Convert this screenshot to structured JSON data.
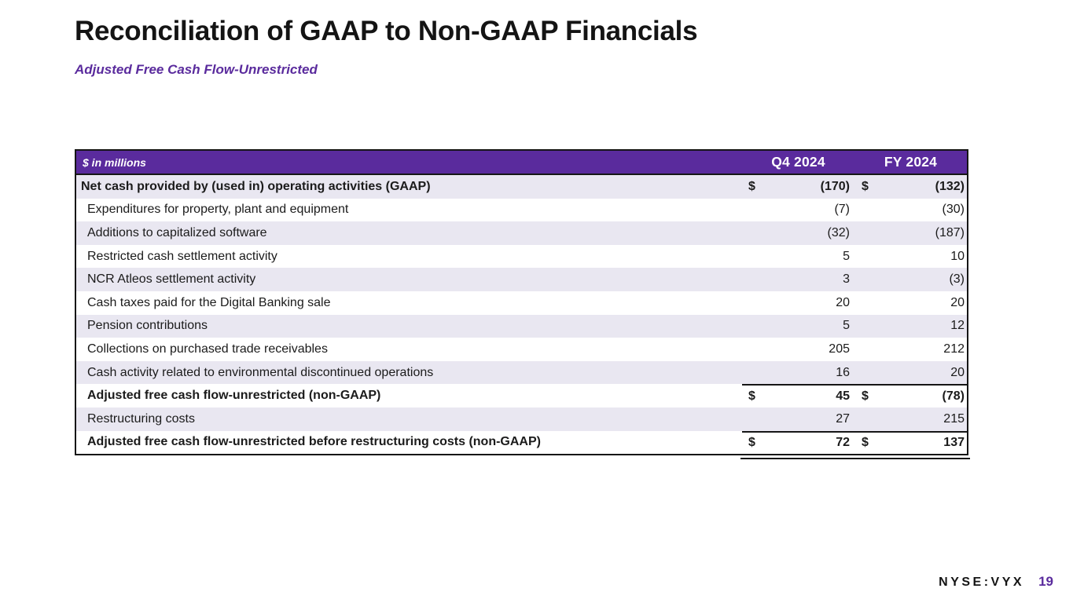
{
  "slide": {
    "title": "Reconciliation of GAAP to Non-GAAP Financials",
    "subtitle": "Adjusted Free Cash Flow-Unrestricted",
    "footer": {
      "ticker": "NYSE:VYX",
      "page_number": "19"
    }
  },
  "table": {
    "unit_label": "$ in millions",
    "currency_symbol": "$",
    "columns": [
      "Q4 2024",
      "FY 2024"
    ],
    "colors": {
      "header_bg": "#5A2B9D",
      "shaded_row_bg": "#E9E7F1",
      "accent_purple": "#5A2B9D"
    },
    "rows": [
      {
        "label": "Net cash provided by (used in) operating activities (GAAP)",
        "q4": "(170)",
        "fy": "(132)",
        "bold": true,
        "flush": true,
        "dollar": true,
        "shaded": true
      },
      {
        "label": "Expenditures for property, plant and equipment",
        "q4": "(7)",
        "fy": "(30)"
      },
      {
        "label": "Additions to capitalized software",
        "q4": "(32)",
        "fy": "(187)",
        "shaded": true
      },
      {
        "label": "Restricted cash settlement activity",
        "q4": "5",
        "fy": "10"
      },
      {
        "label": "NCR Atleos settlement activity",
        "q4": "3",
        "fy": "(3)",
        "shaded": true
      },
      {
        "label": "Cash taxes paid for the Digital Banking sale",
        "q4": "20",
        "fy": "20"
      },
      {
        "label": "Pension contributions",
        "q4": "5",
        "fy": "12",
        "shaded": true
      },
      {
        "label": "Collections on purchased trade receivables",
        "q4": "205",
        "fy": "212"
      },
      {
        "label": "Cash activity related to environmental discontinued operations",
        "q4": "16",
        "fy": "20",
        "shaded": true
      },
      {
        "label": "Adjusted free cash flow-unrestricted (non-GAAP)",
        "q4": "45",
        "fy": "(78)",
        "bold": true,
        "dollar": true,
        "topline": true
      },
      {
        "label": "Restructuring costs",
        "q4": "27",
        "fy": "215",
        "shaded": true
      },
      {
        "label": "Adjusted free cash flow-unrestricted before restructuring costs (non-GAAP)",
        "q4": "72",
        "fy": "137",
        "bold": true,
        "dollar": true,
        "topline": true,
        "double_underline": true
      }
    ]
  }
}
